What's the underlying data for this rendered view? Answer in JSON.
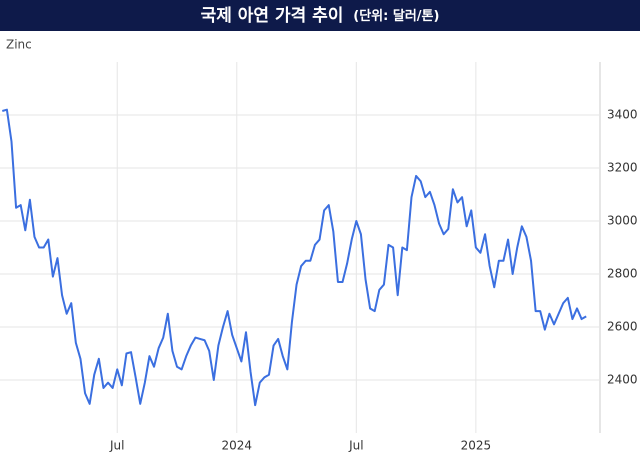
{
  "chart_data": {
    "type": "line",
    "title": "국제 아연 가격 추이",
    "subtitle": "(단위: 달러/톤)",
    "x": [
      0,
      1,
      2,
      3,
      4,
      5,
      6,
      7,
      8,
      9,
      10,
      11,
      12,
      13,
      14,
      15,
      16,
      17,
      18,
      19,
      20,
      21,
      22,
      23,
      24,
      25,
      26,
      27,
      28,
      29,
      30,
      31,
      32,
      33,
      34,
      35,
      36,
      37,
      38,
      39,
      40,
      41,
      42,
      43,
      44,
      45,
      46,
      47,
      48,
      49,
      50,
      51,
      52,
      53,
      54,
      55,
      56,
      57,
      58,
      59,
      60,
      61,
      62,
      63,
      64,
      65,
      66,
      67,
      68,
      69,
      70,
      71,
      72,
      73,
      74,
      75,
      76,
      77,
      78,
      79,
      80,
      81,
      82,
      83,
      84,
      85,
      86,
      87,
      88,
      89,
      90,
      91,
      92,
      93,
      94,
      95,
      96,
      97,
      98,
      99,
      100,
      101,
      102,
      103,
      104,
      105,
      106,
      107,
      108,
      109,
      110,
      111,
      112,
      113,
      114,
      115,
      116,
      117,
      118,
      119,
      120,
      121,
      122,
      123,
      124,
      125,
      126,
      127
    ],
    "series": [
      {
        "name": "Zinc",
        "color": "#3b6fe0",
        "values": [
          3415,
          3420,
          3300,
          3050,
          3060,
          2965,
          3080,
          2940,
          2900,
          2900,
          2930,
          2790,
          2860,
          2720,
          2650,
          2690,
          2540,
          2480,
          2350,
          2310,
          2420,
          2480,
          2370,
          2390,
          2370,
          2440,
          2380,
          2500,
          2505,
          2410,
          2310,
          2390,
          2490,
          2450,
          2520,
          2560,
          2650,
          2510,
          2450,
          2440,
          2490,
          2530,
          2560,
          2555,
          2550,
          2510,
          2400,
          2530,
          2600,
          2660,
          2570,
          2520,
          2470,
          2580,
          2430,
          2305,
          2390,
          2410,
          2420,
          2530,
          2555,
          2490,
          2440,
          2620,
          2760,
          2830,
          2850,
          2850,
          2910,
          2930,
          3040,
          3060,
          2960,
          2770,
          2770,
          2840,
          2930,
          3000,
          2950,
          2780,
          2670,
          2660,
          2740,
          2760,
          2910,
          2900,
          2720,
          2900,
          2890,
          3090,
          3170,
          3150,
          3090,
          3110,
          3060,
          2990,
          2950,
          2970,
          3120,
          3070,
          3090,
          2980,
          3040,
          2900,
          2880,
          2950,
          2830,
          2750,
          2850,
          2850,
          2930,
          2800,
          2900,
          2980,
          2940,
          2850,
          2660,
          2660,
          2590,
          2650,
          2610,
          2650,
          2690,
          2710,
          2630,
          2670,
          2630,
          2640
        ]
      }
    ],
    "xlim": [
      -0.5,
      130
    ],
    "xticks": [
      {
        "value": 25,
        "label": "Jul"
      },
      {
        "value": 51,
        "label": "2024"
      },
      {
        "value": 77,
        "label": "Jul"
      },
      {
        "value": 103,
        "label": "2025"
      }
    ],
    "ylim": [
      2200,
      3600
    ],
    "yticks": [
      2400,
      2600,
      2800,
      3000,
      3200,
      3400
    ],
    "grid": true
  }
}
